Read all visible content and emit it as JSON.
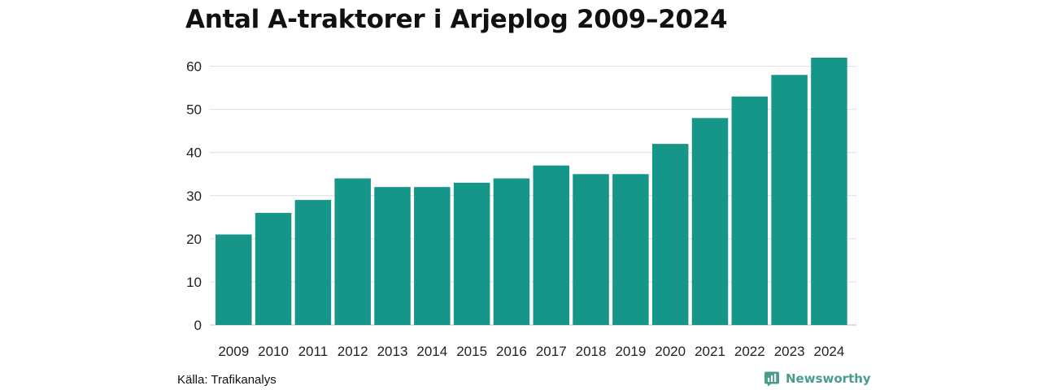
{
  "chart_data": {
    "type": "bar",
    "title": "Antal A-traktorer i Arjeplog 2009–2024",
    "xlabel": "",
    "ylabel": "",
    "categories": [
      "2009",
      "2010",
      "2011",
      "2012",
      "2013",
      "2014",
      "2015",
      "2016",
      "2017",
      "2018",
      "2019",
      "2020",
      "2021",
      "2022",
      "2023",
      "2024"
    ],
    "values": [
      21,
      26,
      29,
      34,
      32,
      32,
      33,
      34,
      37,
      35,
      35,
      42,
      48,
      53,
      58,
      62
    ],
    "ylim": [
      0,
      62
    ],
    "yticks": [
      0,
      10,
      20,
      30,
      40,
      50,
      60
    ],
    "grid": true,
    "legend": "none",
    "bar_color": "#159688"
  },
  "footer": {
    "source": "Källa: Trafikanalys",
    "brand": "Newsworthy",
    "brand_icon": "newsworthy-chart-icon",
    "brand_color": "#4a9c8c"
  }
}
